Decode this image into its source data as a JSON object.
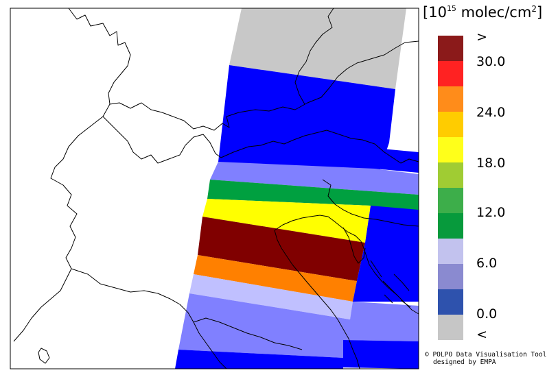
{
  "legend": {
    "unit_base": "10",
    "unit_exp": "15",
    "unit_main": "molec/cm",
    "unit_sq": "2",
    "labels": [
      ">",
      "30.0",
      "24.0",
      "18.0",
      "12.0",
      "6.0",
      "0.0",
      "<"
    ],
    "colors": {
      "above": "#8b1a1a",
      "r30": "#ff2222",
      "r27": "#ff8c1a",
      "r24": "#ffcc00",
      "r21": "#ffff1a",
      "r18": "#a0cc33",
      "r15": "#3dae4a",
      "r12": "#079a3c",
      "r9": "#c2c2ee",
      "r6": "#8a8ad0",
      "r3": "#2e52ad",
      "below": "#c6c6c6"
    }
  },
  "map": {
    "swath_colors": {
      "grey": "#c8c8c8",
      "blue": "#0000ff",
      "medium_blue": "#8080ff",
      "light_blue": "#c0c0ff",
      "green": "#00a040",
      "yellow": "#ffff00",
      "dark_red": "#800000",
      "orange": "#ff8000"
    }
  },
  "credit": {
    "line1": "© POLPO Data Visualisation Tool",
    "line2": "designed by EMPA"
  }
}
